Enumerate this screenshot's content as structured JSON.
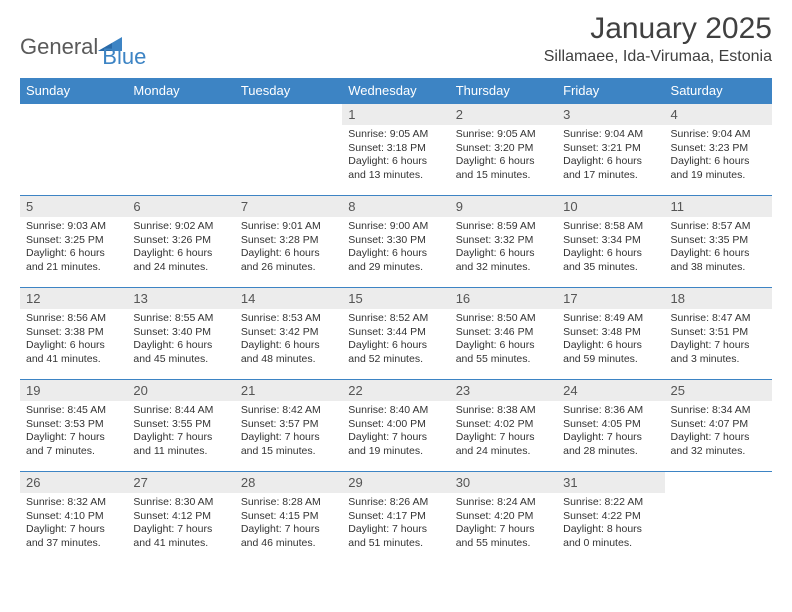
{
  "brand": {
    "part1": "General",
    "part2": "Blue"
  },
  "title": "January 2025",
  "location": "Sillamaee, Ida-Virumaa, Estonia",
  "colors": {
    "header_bg": "#3d84c4",
    "header_text": "#ffffff",
    "daynum_bg": "#ececec",
    "border": "#3d84c4",
    "brand_gray": "#5a5a5a",
    "brand_blue": "#3d84c4"
  },
  "font": {
    "day_header_size": 13,
    "daynum_size": 13,
    "body_size": 10.5,
    "title_size": 30,
    "location_size": 16
  },
  "day_headers": [
    "Sunday",
    "Monday",
    "Tuesday",
    "Wednesday",
    "Thursday",
    "Friday",
    "Saturday"
  ],
  "weeks": [
    [
      {
        "n": "",
        "s": "",
        "ss": "",
        "d": "",
        "empty": true
      },
      {
        "n": "",
        "s": "",
        "ss": "",
        "d": "",
        "empty": true
      },
      {
        "n": "",
        "s": "",
        "ss": "",
        "d": "",
        "empty": true
      },
      {
        "n": "1",
        "s": "Sunrise: 9:05 AM",
        "ss": "Sunset: 3:18 PM",
        "d": "Daylight: 6 hours and 13 minutes."
      },
      {
        "n": "2",
        "s": "Sunrise: 9:05 AM",
        "ss": "Sunset: 3:20 PM",
        "d": "Daylight: 6 hours and 15 minutes."
      },
      {
        "n": "3",
        "s": "Sunrise: 9:04 AM",
        "ss": "Sunset: 3:21 PM",
        "d": "Daylight: 6 hours and 17 minutes."
      },
      {
        "n": "4",
        "s": "Sunrise: 9:04 AM",
        "ss": "Sunset: 3:23 PM",
        "d": "Daylight: 6 hours and 19 minutes."
      }
    ],
    [
      {
        "n": "5",
        "s": "Sunrise: 9:03 AM",
        "ss": "Sunset: 3:25 PM",
        "d": "Daylight: 6 hours and 21 minutes."
      },
      {
        "n": "6",
        "s": "Sunrise: 9:02 AM",
        "ss": "Sunset: 3:26 PM",
        "d": "Daylight: 6 hours and 24 minutes."
      },
      {
        "n": "7",
        "s": "Sunrise: 9:01 AM",
        "ss": "Sunset: 3:28 PM",
        "d": "Daylight: 6 hours and 26 minutes."
      },
      {
        "n": "8",
        "s": "Sunrise: 9:00 AM",
        "ss": "Sunset: 3:30 PM",
        "d": "Daylight: 6 hours and 29 minutes."
      },
      {
        "n": "9",
        "s": "Sunrise: 8:59 AM",
        "ss": "Sunset: 3:32 PM",
        "d": "Daylight: 6 hours and 32 minutes."
      },
      {
        "n": "10",
        "s": "Sunrise: 8:58 AM",
        "ss": "Sunset: 3:34 PM",
        "d": "Daylight: 6 hours and 35 minutes."
      },
      {
        "n": "11",
        "s": "Sunrise: 8:57 AM",
        "ss": "Sunset: 3:35 PM",
        "d": "Daylight: 6 hours and 38 minutes."
      }
    ],
    [
      {
        "n": "12",
        "s": "Sunrise: 8:56 AM",
        "ss": "Sunset: 3:38 PM",
        "d": "Daylight: 6 hours and 41 minutes."
      },
      {
        "n": "13",
        "s": "Sunrise: 8:55 AM",
        "ss": "Sunset: 3:40 PM",
        "d": "Daylight: 6 hours and 45 minutes."
      },
      {
        "n": "14",
        "s": "Sunrise: 8:53 AM",
        "ss": "Sunset: 3:42 PM",
        "d": "Daylight: 6 hours and 48 minutes."
      },
      {
        "n": "15",
        "s": "Sunrise: 8:52 AM",
        "ss": "Sunset: 3:44 PM",
        "d": "Daylight: 6 hours and 52 minutes."
      },
      {
        "n": "16",
        "s": "Sunrise: 8:50 AM",
        "ss": "Sunset: 3:46 PM",
        "d": "Daylight: 6 hours and 55 minutes."
      },
      {
        "n": "17",
        "s": "Sunrise: 8:49 AM",
        "ss": "Sunset: 3:48 PM",
        "d": "Daylight: 6 hours and 59 minutes."
      },
      {
        "n": "18",
        "s": "Sunrise: 8:47 AM",
        "ss": "Sunset: 3:51 PM",
        "d": "Daylight: 7 hours and 3 minutes."
      }
    ],
    [
      {
        "n": "19",
        "s": "Sunrise: 8:45 AM",
        "ss": "Sunset: 3:53 PM",
        "d": "Daylight: 7 hours and 7 minutes."
      },
      {
        "n": "20",
        "s": "Sunrise: 8:44 AM",
        "ss": "Sunset: 3:55 PM",
        "d": "Daylight: 7 hours and 11 minutes."
      },
      {
        "n": "21",
        "s": "Sunrise: 8:42 AM",
        "ss": "Sunset: 3:57 PM",
        "d": "Daylight: 7 hours and 15 minutes."
      },
      {
        "n": "22",
        "s": "Sunrise: 8:40 AM",
        "ss": "Sunset: 4:00 PM",
        "d": "Daylight: 7 hours and 19 minutes."
      },
      {
        "n": "23",
        "s": "Sunrise: 8:38 AM",
        "ss": "Sunset: 4:02 PM",
        "d": "Daylight: 7 hours and 24 minutes."
      },
      {
        "n": "24",
        "s": "Sunrise: 8:36 AM",
        "ss": "Sunset: 4:05 PM",
        "d": "Daylight: 7 hours and 28 minutes."
      },
      {
        "n": "25",
        "s": "Sunrise: 8:34 AM",
        "ss": "Sunset: 4:07 PM",
        "d": "Daylight: 7 hours and 32 minutes."
      }
    ],
    [
      {
        "n": "26",
        "s": "Sunrise: 8:32 AM",
        "ss": "Sunset: 4:10 PM",
        "d": "Daylight: 7 hours and 37 minutes."
      },
      {
        "n": "27",
        "s": "Sunrise: 8:30 AM",
        "ss": "Sunset: 4:12 PM",
        "d": "Daylight: 7 hours and 41 minutes."
      },
      {
        "n": "28",
        "s": "Sunrise: 8:28 AM",
        "ss": "Sunset: 4:15 PM",
        "d": "Daylight: 7 hours and 46 minutes."
      },
      {
        "n": "29",
        "s": "Sunrise: 8:26 AM",
        "ss": "Sunset: 4:17 PM",
        "d": "Daylight: 7 hours and 51 minutes."
      },
      {
        "n": "30",
        "s": "Sunrise: 8:24 AM",
        "ss": "Sunset: 4:20 PM",
        "d": "Daylight: 7 hours and 55 minutes."
      },
      {
        "n": "31",
        "s": "Sunrise: 8:22 AM",
        "ss": "Sunset: 4:22 PM",
        "d": "Daylight: 8 hours and 0 minutes."
      },
      {
        "n": "",
        "s": "",
        "ss": "",
        "d": "",
        "empty": true
      }
    ]
  ]
}
